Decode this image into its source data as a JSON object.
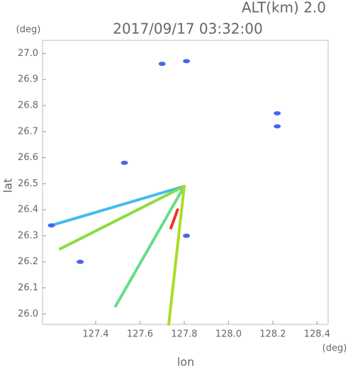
{
  "chart_data": {
    "type": "scatter",
    "title": "2017/09/17 03:32:00",
    "subtitle": "ALT(km) 2.0",
    "x_label": "lon",
    "x_unit": "(deg)",
    "y_label": "lat",
    "y_unit": "(deg)",
    "xlim": [
      127.16,
      128.45
    ],
    "ylim": [
      25.96,
      27.05
    ],
    "xticks": [
      127.4,
      127.6,
      127.8,
      {
        "value": 128,
        "label": "128.0"
      },
      128.2,
      128.4
    ],
    "yticks": [
      {
        "value": 26,
        "label": "26.0"
      },
      26.1,
      26.2,
      26.3,
      26.4,
      26.5,
      26.6,
      26.7,
      26.8,
      26.9,
      {
        "value": 27,
        "label": "27.0"
      }
    ],
    "series": [
      {
        "type": "line",
        "color": "#44bbee",
        "x": [
          127.8,
          127.2
        ],
        "y": [
          26.49,
          26.34
        ]
      },
      {
        "type": "line",
        "color": "#88dd44",
        "x": [
          127.8,
          127.24
        ],
        "y": [
          26.49,
          26.25
        ]
      },
      {
        "type": "line",
        "color": "#66dd88",
        "x": [
          127.8,
          127.49
        ],
        "y": [
          26.49,
          26.03
        ]
      },
      {
        "type": "line",
        "color": "#aadd22",
        "x": [
          127.8,
          127.73
        ],
        "y": [
          26.49,
          25.96
        ]
      },
      {
        "type": "line",
        "color": "#ee3322",
        "x": [
          127.74,
          127.77
        ],
        "y": [
          26.33,
          26.4
        ]
      },
      {
        "type": "point",
        "color": "#4466ee",
        "x": [
          127.7,
          127.81,
          128.22,
          128.22,
          127.53,
          127.33,
          127.81,
          127.2
        ],
        "y": [
          26.96,
          26.97,
          26.77,
          26.72,
          26.58,
          26.2,
          26.3,
          26.34
        ]
      }
    ]
  }
}
